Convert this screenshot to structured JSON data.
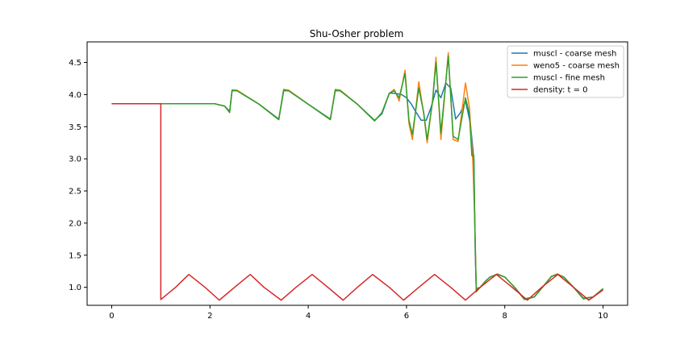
{
  "chart_data": {
    "type": "line",
    "title": "Shu-Osher problem",
    "xlabel": "",
    "ylabel": "",
    "xlim": [
      -0.5,
      10.5
    ],
    "ylim": [
      0.72,
      4.82
    ],
    "xticks": [
      0,
      2,
      4,
      6,
      8,
      10
    ],
    "xtick_labels": [
      "0",
      "2",
      "4",
      "6",
      "8",
      "10"
    ],
    "yticks": [
      1.0,
      1.5,
      2.0,
      2.5,
      3.0,
      3.5,
      4.0,
      4.5
    ],
    "ytick_labels": [
      "1.0",
      "1.5",
      "2.0",
      "2.5",
      "3.0",
      "3.5",
      "4.0",
      "4.5"
    ],
    "grid": false,
    "legend_position": "top-right",
    "series": [
      {
        "name": "muscl - coarse mesh",
        "color": "#1f77b4",
        "points": [
          [
            0,
            3.857
          ],
          [
            2.1,
            3.857
          ],
          [
            2.3,
            3.82
          ],
          [
            2.4,
            3.74
          ],
          [
            2.45,
            4.06
          ],
          [
            2.55,
            4.06
          ],
          [
            3.0,
            3.85
          ],
          [
            3.4,
            3.62
          ],
          [
            3.5,
            4.06
          ],
          [
            3.6,
            4.06
          ],
          [
            4.0,
            3.85
          ],
          [
            4.45,
            3.62
          ],
          [
            4.55,
            4.06
          ],
          [
            4.65,
            4.06
          ],
          [
            5.0,
            3.85
          ],
          [
            5.35,
            3.6
          ],
          [
            5.5,
            3.7
          ],
          [
            5.65,
            4.02
          ],
          [
            5.75,
            4.02
          ],
          [
            5.9,
            4.0
          ],
          [
            6.0,
            3.95
          ],
          [
            6.1,
            3.85
          ],
          [
            6.2,
            3.72
          ],
          [
            6.3,
            3.6
          ],
          [
            6.4,
            3.6
          ],
          [
            6.5,
            3.8
          ],
          [
            6.6,
            4.07
          ],
          [
            6.7,
            3.95
          ],
          [
            6.8,
            4.18
          ],
          [
            6.9,
            4.1
          ],
          [
            7.0,
            3.62
          ],
          [
            7.1,
            3.72
          ],
          [
            7.2,
            3.9
          ],
          [
            7.3,
            3.55
          ],
          [
            7.37,
            3.0
          ],
          [
            7.4,
            1.5
          ],
          [
            7.42,
            0.98
          ],
          [
            7.5,
            1.0
          ],
          [
            7.6,
            1.09
          ],
          [
            7.7,
            1.16
          ],
          [
            7.85,
            1.2
          ],
          [
            8.0,
            1.16
          ],
          [
            8.2,
            1.0
          ],
          [
            8.4,
            0.82
          ],
          [
            8.6,
            0.85
          ],
          [
            8.8,
            1.03
          ],
          [
            8.95,
            1.17
          ],
          [
            9.07,
            1.2
          ],
          [
            9.2,
            1.16
          ],
          [
            9.4,
            1.0
          ],
          [
            9.6,
            0.83
          ],
          [
            9.8,
            0.85
          ],
          [
            10.0,
            0.98
          ]
        ]
      },
      {
        "name": "weno5 - coarse mesh",
        "color": "#ff7f0e",
        "points": [
          [
            0,
            3.857
          ],
          [
            2.1,
            3.857
          ],
          [
            2.3,
            3.82
          ],
          [
            2.4,
            3.72
          ],
          [
            2.45,
            4.07
          ],
          [
            2.55,
            4.07
          ],
          [
            3.0,
            3.85
          ],
          [
            3.4,
            3.61
          ],
          [
            3.5,
            4.08
          ],
          [
            3.6,
            4.07
          ],
          [
            4.0,
            3.85
          ],
          [
            4.45,
            3.61
          ],
          [
            4.55,
            4.08
          ],
          [
            4.65,
            4.07
          ],
          [
            5.0,
            3.85
          ],
          [
            5.35,
            3.59
          ],
          [
            5.5,
            3.72
          ],
          [
            5.65,
            4.02
          ],
          [
            5.75,
            4.08
          ],
          [
            5.85,
            3.9
          ],
          [
            5.97,
            4.38
          ],
          [
            6.05,
            3.55
          ],
          [
            6.12,
            3.3
          ],
          [
            6.25,
            4.2
          ],
          [
            6.35,
            3.7
          ],
          [
            6.42,
            3.25
          ],
          [
            6.53,
            3.9
          ],
          [
            6.6,
            4.58
          ],
          [
            6.7,
            3.3
          ],
          [
            6.85,
            4.65
          ],
          [
            6.95,
            3.3
          ],
          [
            7.05,
            3.27
          ],
          [
            7.2,
            4.18
          ],
          [
            7.28,
            3.8
          ],
          [
            7.35,
            2.95
          ],
          [
            7.39,
            2.0
          ],
          [
            7.42,
            0.96
          ],
          [
            7.5,
            1.0
          ],
          [
            7.6,
            1.09
          ],
          [
            7.7,
            1.16
          ],
          [
            7.85,
            1.21
          ],
          [
            8.0,
            1.16
          ],
          [
            8.2,
            1.0
          ],
          [
            8.4,
            0.81
          ],
          [
            8.6,
            0.85
          ],
          [
            8.8,
            1.03
          ],
          [
            8.95,
            1.17
          ],
          [
            9.07,
            1.21
          ],
          [
            9.2,
            1.16
          ],
          [
            9.4,
            1.0
          ],
          [
            9.6,
            0.82
          ],
          [
            9.8,
            0.85
          ],
          [
            10.0,
            0.98
          ]
        ]
      },
      {
        "name": "muscl - fine mesh",
        "color": "#2ca02c",
        "points": [
          [
            0,
            3.857
          ],
          [
            2.1,
            3.857
          ],
          [
            2.3,
            3.82
          ],
          [
            2.4,
            3.72
          ],
          [
            2.45,
            4.07
          ],
          [
            2.55,
            4.06
          ],
          [
            3.0,
            3.85
          ],
          [
            3.4,
            3.61
          ],
          [
            3.5,
            4.07
          ],
          [
            3.6,
            4.06
          ],
          [
            4.0,
            3.85
          ],
          [
            4.45,
            3.61
          ],
          [
            4.55,
            4.07
          ],
          [
            4.65,
            4.06
          ],
          [
            5.0,
            3.85
          ],
          [
            5.35,
            3.59
          ],
          [
            5.5,
            3.72
          ],
          [
            5.65,
            4.02
          ],
          [
            5.75,
            4.06
          ],
          [
            5.85,
            3.95
          ],
          [
            5.97,
            4.33
          ],
          [
            6.05,
            3.6
          ],
          [
            6.12,
            3.38
          ],
          [
            6.25,
            4.1
          ],
          [
            6.35,
            3.72
          ],
          [
            6.42,
            3.3
          ],
          [
            6.53,
            3.9
          ],
          [
            6.6,
            4.5
          ],
          [
            6.7,
            3.4
          ],
          [
            6.85,
            4.6
          ],
          [
            6.95,
            3.35
          ],
          [
            7.05,
            3.3
          ],
          [
            7.2,
            3.95
          ],
          [
            7.28,
            3.7
          ],
          [
            7.33,
            3.05
          ],
          [
            7.37,
            3.05
          ],
          [
            7.39,
            2.0
          ],
          [
            7.42,
            0.93
          ],
          [
            7.5,
            1.0
          ],
          [
            7.6,
            1.09
          ],
          [
            7.7,
            1.16
          ],
          [
            7.85,
            1.2
          ],
          [
            8.0,
            1.16
          ],
          [
            8.2,
            1.0
          ],
          [
            8.4,
            0.81
          ],
          [
            8.6,
            0.85
          ],
          [
            8.8,
            1.03
          ],
          [
            8.95,
            1.17
          ],
          [
            9.07,
            1.2
          ],
          [
            9.2,
            1.16
          ],
          [
            9.4,
            1.0
          ],
          [
            9.6,
            0.82
          ],
          [
            9.8,
            0.85
          ],
          [
            10.0,
            0.98
          ]
        ]
      },
      {
        "name": "density: t = 0",
        "color": "#d62728",
        "function": "3.857143 for x < 1, 1 + 0.2*sin(5*(x-5)) for x >= 1",
        "points": [
          [
            0,
            3.857
          ],
          [
            1,
            3.857
          ],
          [
            1,
            0.81
          ],
          [
            1.3,
            1.0
          ],
          [
            1.57,
            1.2
          ],
          [
            1.9,
            1.0
          ],
          [
            2.19,
            0.8
          ],
          [
            2.5,
            1.0
          ],
          [
            2.82,
            1.2
          ],
          [
            3.1,
            1.0
          ],
          [
            3.45,
            0.8
          ],
          [
            3.75,
            1.0
          ],
          [
            4.08,
            1.2
          ],
          [
            4.4,
            1.0
          ],
          [
            4.71,
            0.8
          ],
          [
            5.0,
            1.0
          ],
          [
            5.31,
            1.2
          ],
          [
            5.65,
            1.0
          ],
          [
            5.94,
            0.8
          ],
          [
            6.25,
            1.0
          ],
          [
            6.57,
            1.2
          ],
          [
            6.9,
            1.0
          ],
          [
            7.2,
            0.8
          ],
          [
            7.5,
            1.0
          ],
          [
            7.83,
            1.2
          ],
          [
            8.15,
            1.0
          ],
          [
            8.46,
            0.8
          ],
          [
            8.75,
            1.0
          ],
          [
            9.08,
            1.2
          ],
          [
            9.4,
            1.0
          ],
          [
            9.71,
            0.8
          ],
          [
            10.0,
            0.96
          ]
        ]
      }
    ]
  }
}
